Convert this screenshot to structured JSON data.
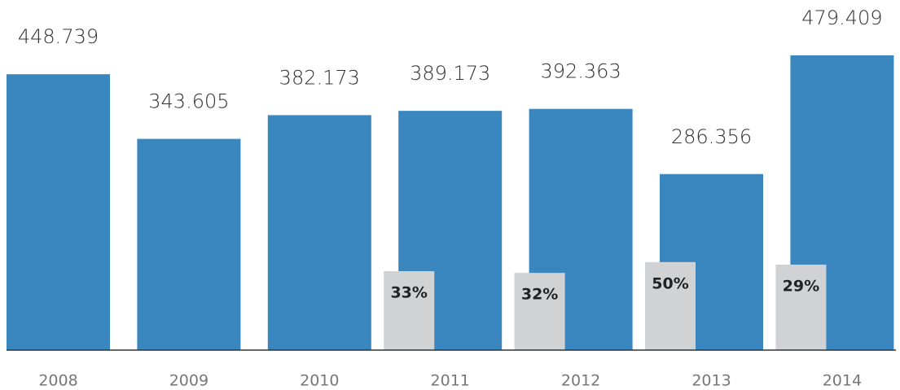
{
  "chart_data": {
    "type": "bar",
    "categories": [
      "2008",
      "2009",
      "2010",
      "2011",
      "2012",
      "2013",
      "2014"
    ],
    "values": [
      448739,
      343605,
      382173,
      389173,
      392363,
      286356,
      479409
    ],
    "value_labels": [
      "448.739",
      "343.605",
      "382.173",
      "389.173",
      "392.363",
      "286.356",
      "479.409"
    ],
    "color": "#3a87c0",
    "share": {
      "values": [
        null,
        null,
        null,
        33,
        32,
        50,
        29
      ],
      "value_labels": [
        null,
        null,
        null,
        "33%",
        "32%",
        "50%",
        "29%"
      ],
      "color": "#d1d2d4"
    }
  }
}
